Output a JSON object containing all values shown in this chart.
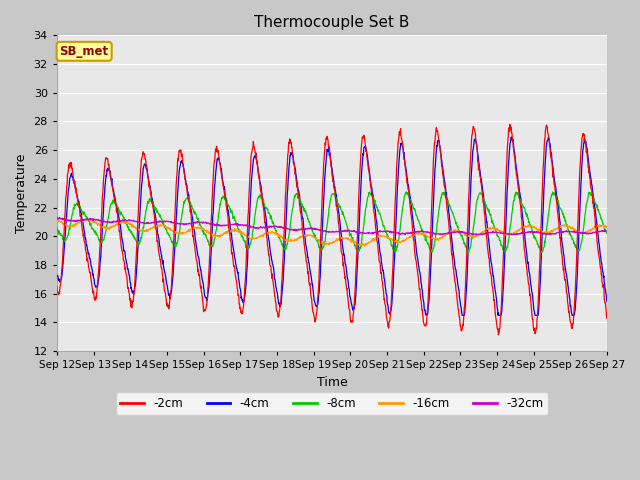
{
  "title": "Thermocouple Set B",
  "xlabel": "Time",
  "ylabel": "Temperature",
  "ylim": [
    12,
    34
  ],
  "yticks": [
    12,
    14,
    16,
    18,
    20,
    22,
    24,
    26,
    28,
    30,
    32,
    34
  ],
  "start_day": 12,
  "end_day": 27,
  "n_days": 15,
  "series_labels": [
    "-2cm",
    "-4cm",
    "-8cm",
    "-16cm",
    "-32cm"
  ],
  "series_colors": [
    "#ff0000",
    "#0000ff",
    "#00cc00",
    "#ff9900",
    "#cc00cc"
  ],
  "annotation_text": "SB_met",
  "annotation_color": "#990000",
  "annotation_bg": "#ffff99",
  "annotation_border": "#cc9900",
  "fig_facecolor": "#c8c8c8",
  "ax_facecolor": "#e8e8e8",
  "grid_color": "#ffffff",
  "figsize": [
    6.4,
    4.8
  ],
  "dpi": 100
}
